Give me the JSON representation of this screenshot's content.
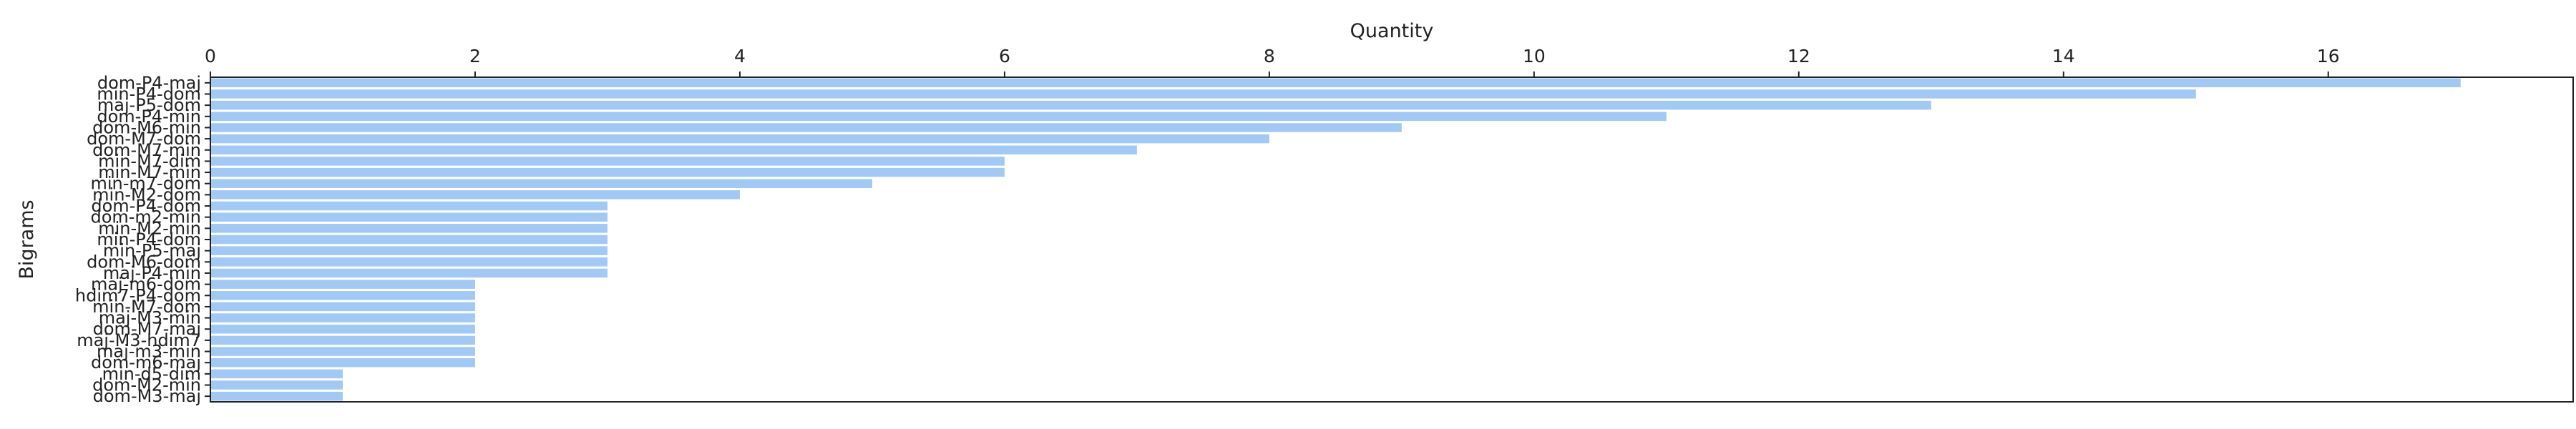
{
  "chart_data": {
    "type": "bar",
    "orientation": "horizontal",
    "xlabel": "Quantity",
    "ylabel": "Bigrams",
    "xaxis_position": "top",
    "xlim": [
      0,
      17.85
    ],
    "xticks": [
      0,
      2,
      4,
      6,
      8,
      10,
      12,
      14,
      16
    ],
    "grid": false,
    "bar_color": "#a1c9f4",
    "categories": [
      "dom-P4-maj",
      "min-P4-dom",
      "maj-P5-dom",
      "dom-P4-min",
      "dom-M6-min",
      "dom-M7-dom",
      "dom-M7-min",
      "min-M7-dim",
      "min-M7-min",
      "min-m7-dom",
      "min-M2-dom",
      "dom-P4-dom",
      "dom-m2-min",
      "min-M2-min",
      "min-P4-dom",
      "min-P5-maj",
      "dom-M6-dom",
      "maj-P4-min",
      "maj-m6-dom",
      "hdim7-P4-dom",
      "min-M7-dom",
      "maj-M3-min",
      "dom-M7-maj",
      "maj-M3-hdim7",
      "maj-m3-min",
      "dom-m6-maj",
      "min-d5-dim",
      "dom-M2-min",
      "dom-M3-maj"
    ],
    "values": [
      17,
      15,
      13,
      11,
      9,
      8,
      7,
      6,
      6,
      5,
      4,
      3,
      3,
      3,
      3,
      3,
      3,
      3,
      2,
      2,
      2,
      2,
      2,
      2,
      2,
      2,
      1,
      1,
      1
    ]
  }
}
